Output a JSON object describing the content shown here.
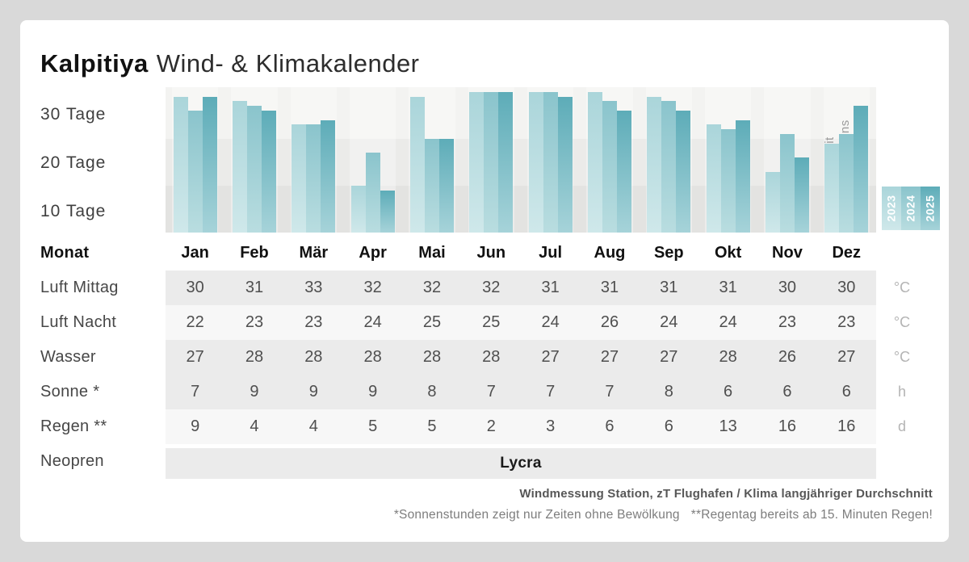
{
  "title": {
    "brand": "Kalpitiya",
    "rest": "Wind- & Klimakalender"
  },
  "colors": {
    "accent": "#5dacb8",
    "years": {
      "2023": {
        "top": "#aad5da",
        "bottom": "#cfe8ea"
      },
      "2024": {
        "top": "#8ac4cc",
        "bottom": "#b9dde0"
      },
      "2025": {
        "top": "#5dacb8",
        "bottom": "#a6d3d9"
      }
    }
  },
  "chart_data": {
    "type": "bar",
    "title": "Tage mit mindestens 4 Beaufort",
    "categories": [
      "Jan",
      "Feb",
      "Mär",
      "Apr",
      "Mai",
      "Jun",
      "Jul",
      "Aug",
      "Sep",
      "Okt",
      "Nov",
      "Dez"
    ],
    "series": [
      {
        "name": "2023",
        "values": [
          29,
          28,
          23,
          10,
          29,
          30,
          30,
          30,
          29,
          23,
          13,
          19
        ]
      },
      {
        "name": "2024",
        "values": [
          26,
          27,
          23,
          17,
          20,
          30,
          30,
          28,
          28,
          22,
          21,
          21
        ]
      },
      {
        "name": "2025",
        "values": [
          29,
          26,
          24,
          9,
          20,
          30,
          29,
          26,
          26,
          24,
          16,
          27
        ]
      }
    ],
    "ylabel": "Tage",
    "ylim": [
      0,
      31
    ],
    "y_ticks": [
      "30 Tage",
      "20 Tage",
      "10 Tage"
    ],
    "grid": "horizontal-bands",
    "legend_position": "right",
    "legend": {
      "line1": "Tage mit",
      "line2": "mindestens",
      "accent": "4",
      "line3": "Beaufort"
    }
  },
  "table": {
    "header_label": "Monat",
    "months": [
      "Jan",
      "Feb",
      "Mär",
      "Apr",
      "Mai",
      "Jun",
      "Jul",
      "Aug",
      "Sep",
      "Okt",
      "Nov",
      "Dez"
    ],
    "rows": [
      {
        "label": "Luft Mittag",
        "unit": "°C",
        "shade": "dark",
        "values": [
          30,
          31,
          33,
          32,
          32,
          32,
          31,
          31,
          31,
          31,
          30,
          30
        ]
      },
      {
        "label": "Luft Nacht",
        "unit": "°C",
        "shade": "light",
        "values": [
          22,
          23,
          23,
          24,
          25,
          25,
          24,
          26,
          24,
          24,
          23,
          23
        ]
      },
      {
        "label": "Wasser",
        "unit": "°C",
        "shade": "dark",
        "values": [
          27,
          28,
          28,
          28,
          28,
          28,
          27,
          27,
          27,
          28,
          26,
          27
        ]
      },
      {
        "label": "Sonne *",
        "unit": "h",
        "shade": "dark",
        "values": [
          7,
          9,
          9,
          9,
          8,
          7,
          7,
          7,
          8,
          6,
          6,
          6
        ]
      },
      {
        "label": "Regen **",
        "unit": "d",
        "shade": "light",
        "values": [
          9,
          4,
          4,
          5,
          5,
          2,
          3,
          6,
          6,
          13,
          16,
          16
        ]
      },
      {
        "label": "Neopren",
        "unit": "",
        "shade": "dark",
        "span_text": "Lycra",
        "gap_before": true
      }
    ]
  },
  "footer": {
    "source": "Windmessung Station, zT Flughafen / Klima langjähriger Durchschnitt",
    "note_sun": "*Sonnenstunden zeigt nur Zeiten ohne Bewölkung",
    "note_rain": "**Regentag bereits ab 15. Minuten Regen!"
  }
}
